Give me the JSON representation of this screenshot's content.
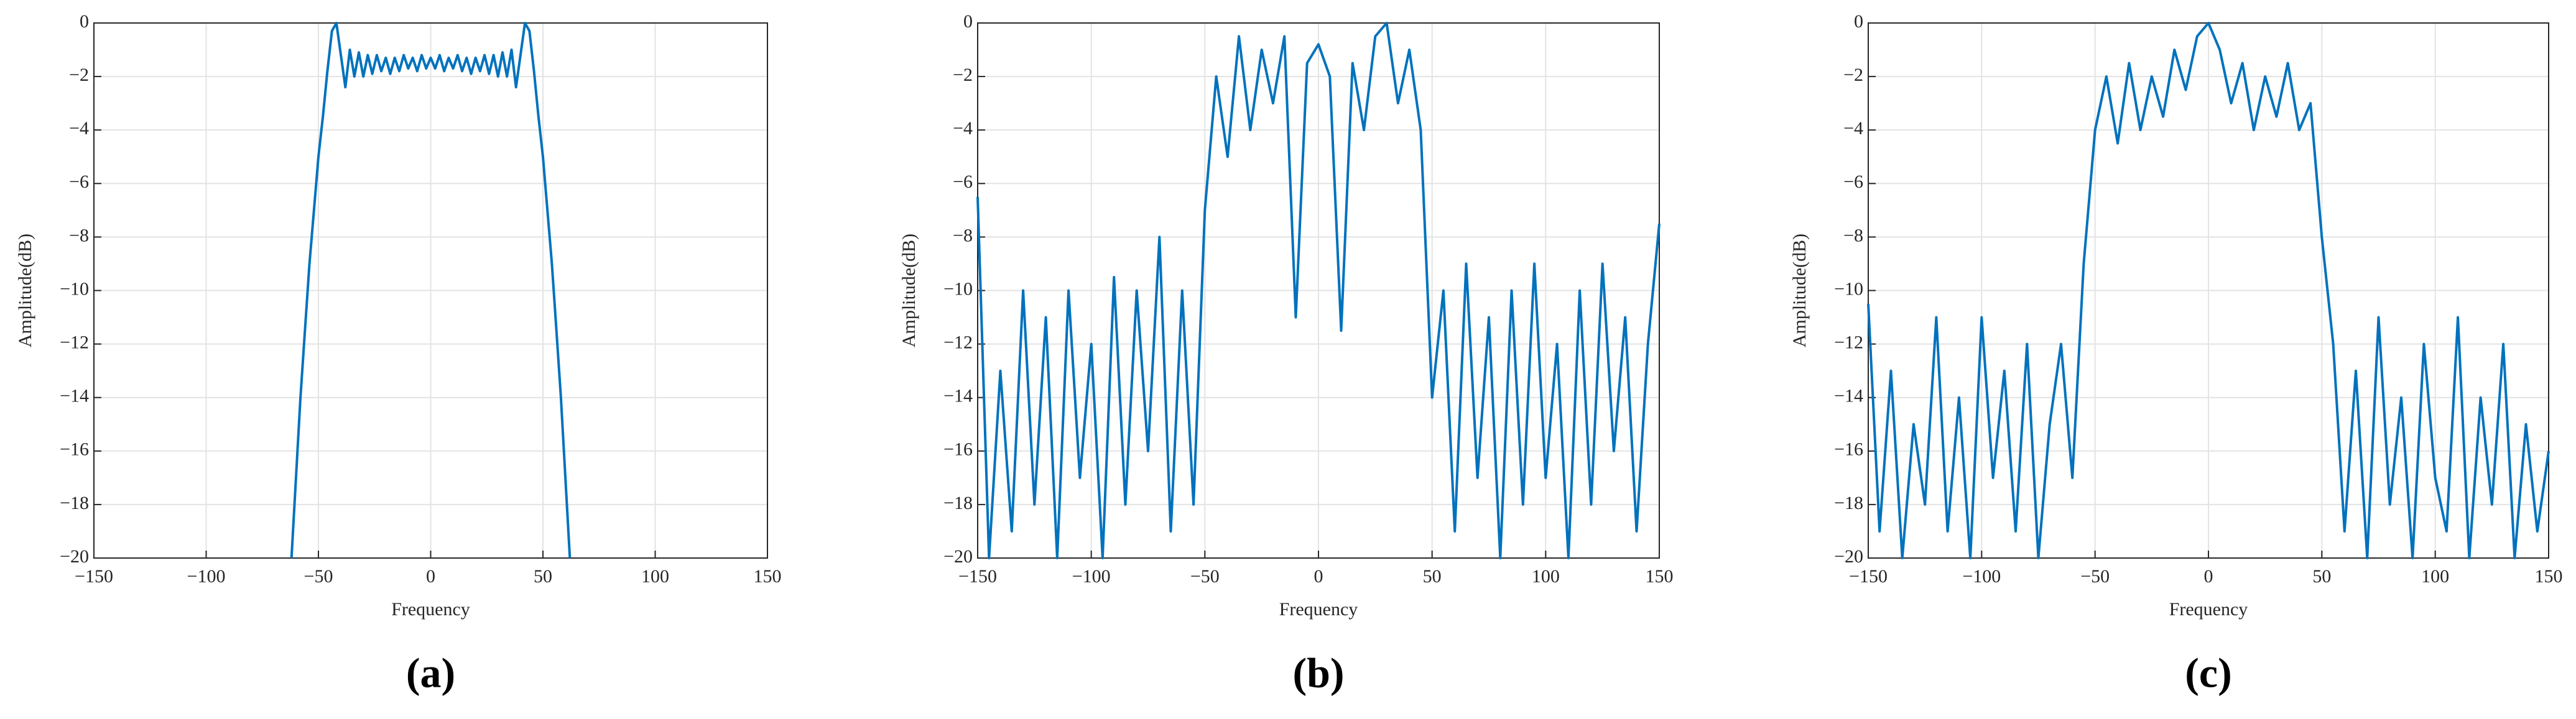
{
  "chart_data": [
    {
      "type": "line",
      "xlabel": "Frequency",
      "ylabel": "Amplitude(dB)",
      "caption": "(a)",
      "color": "#0072bd",
      "grid": true,
      "xlim": [
        -150,
        150
      ],
      "ylim": [
        -20,
        0
      ],
      "xticks": [
        {
          "value": -150,
          "label": "−150"
        },
        {
          "value": -100,
          "label": "−100"
        },
        {
          "value": -50,
          "label": "−50"
        },
        0,
        50,
        100,
        150
      ],
      "yticks": [
        {
          "value": -20,
          "label": "−20"
        },
        {
          "value": -18,
          "label": "−18"
        },
        {
          "value": -16,
          "label": "−16"
        },
        {
          "value": -14,
          "label": "−14"
        },
        {
          "value": -12,
          "label": "−12"
        },
        {
          "value": -10,
          "label": "−10"
        },
        {
          "value": -8,
          "label": "−8"
        },
        {
          "value": -6,
          "label": "−6"
        },
        {
          "value": -4,
          "label": "−4"
        },
        {
          "value": -2,
          "label": "−2"
        },
        0
      ],
      "x": [
        -62,
        -60,
        -58,
        -56,
        -54,
        -52,
        -50,
        -48,
        -46,
        -44,
        -42,
        -40,
        -38,
        -36,
        -34,
        -32,
        -30,
        -28,
        -26,
        -24,
        -22,
        -20,
        -18,
        -16,
        -14,
        -12,
        -10,
        -8,
        -6,
        -4,
        -2,
        0,
        2,
        4,
        6,
        8,
        10,
        12,
        14,
        16,
        18,
        20,
        22,
        24,
        26,
        28,
        30,
        32,
        34,
        36,
        38,
        40,
        42,
        44,
        46,
        48,
        50,
        52,
        54,
        56,
        58,
        60,
        62
      ],
      "values": [
        -20,
        -17,
        -14,
        -11.5,
        -9,
        -7,
        -5,
        -3.5,
        -1.8,
        -0.3,
        0,
        -1.2,
        -2.4,
        -1.0,
        -2.0,
        -1.1,
        -2.0,
        -1.2,
        -1.9,
        -1.2,
        -1.8,
        -1.3,
        -1.9,
        -1.3,
        -1.8,
        -1.2,
        -1.7,
        -1.3,
        -1.8,
        -1.2,
        -1.7,
        -1.3,
        -1.7,
        -1.2,
        -1.8,
        -1.3,
        -1.7,
        -1.2,
        -1.8,
        -1.3,
        -1.9,
        -1.3,
        -1.8,
        -1.2,
        -1.9,
        -1.2,
        -2.0,
        -1.1,
        -2.0,
        -1.0,
        -2.4,
        -1.2,
        0,
        -0.3,
        -1.8,
        -3.5,
        -5,
        -7,
        -9,
        -11.5,
        -14,
        -17,
        -20
      ]
    },
    {
      "type": "line",
      "xlabel": "Frequency",
      "ylabel": "Amplitude(dB)",
      "caption": "(b)",
      "color": "#0072bd",
      "grid": true,
      "xlim": [
        -150,
        150
      ],
      "ylim": [
        -20,
        0
      ],
      "xticks": [
        {
          "value": -150,
          "label": "−150"
        },
        {
          "value": -100,
          "label": "−100"
        },
        {
          "value": -50,
          "label": "−50"
        },
        0,
        50,
        100,
        150
      ],
      "yticks": [
        {
          "value": -20,
          "label": "−20"
        },
        {
          "value": -18,
          "label": "−18"
        },
        {
          "value": -16,
          "label": "−16"
        },
        {
          "value": -14,
          "label": "−14"
        },
        {
          "value": -12,
          "label": "−12"
        },
        {
          "value": -10,
          "label": "−10"
        },
        {
          "value": -8,
          "label": "−8"
        },
        {
          "value": -6,
          "label": "−6"
        },
        {
          "value": -4,
          "label": "−4"
        },
        {
          "value": -2,
          "label": "−2"
        },
        0
      ],
      "x": [
        -150,
        -145,
        -140,
        -135,
        -130,
        -125,
        -120,
        -115,
        -110,
        -105,
        -100,
        -95,
        -90,
        -85,
        -80,
        -75,
        -70,
        -65,
        -60,
        -55,
        -50,
        -45,
        -40,
        -35,
        -30,
        -25,
        -20,
        -15,
        -10,
        -5,
        0,
        5,
        10,
        15,
        20,
        25,
        30,
        35,
        40,
        45,
        50,
        55,
        60,
        65,
        70,
        75,
        80,
        85,
        90,
        95,
        100,
        105,
        110,
        115,
        120,
        125,
        130,
        135,
        140,
        145,
        150
      ],
      "values": [
        -6.5,
        -20,
        -13,
        -19,
        -10,
        -18,
        -11,
        -20,
        -10,
        -17,
        -12,
        -20,
        -9.5,
        -18,
        -10,
        -16,
        -8,
        -19,
        -10,
        -18,
        -7,
        -2,
        -5,
        -0.5,
        -4,
        -1,
        -3,
        -0.5,
        -11,
        -1.5,
        -0.8,
        -2,
        -11.5,
        -1.5,
        -4,
        -0.5,
        0,
        -3,
        -1,
        -4,
        -14,
        -10,
        -19,
        -9,
        -17,
        -11,
        -20,
        -10,
        -18,
        -9,
        -17,
        -12,
        -20,
        -10,
        -18,
        -9,
        -16,
        -11,
        -19,
        -12,
        -7.5
      ]
    },
    {
      "type": "line",
      "xlabel": "Frequency",
      "ylabel": "Amplitude(dB)",
      "caption": "(c)",
      "color": "#0072bd",
      "grid": true,
      "xlim": [
        -150,
        150
      ],
      "ylim": [
        -20,
        0
      ],
      "xticks": [
        {
          "value": -150,
          "label": "−150"
        },
        {
          "value": -100,
          "label": "−100"
        },
        {
          "value": -50,
          "label": "−50"
        },
        0,
        50,
        100,
        150
      ],
      "yticks": [
        {
          "value": -20,
          "label": "−20"
        },
        {
          "value": -18,
          "label": "−18"
        },
        {
          "value": -16,
          "label": "−16"
        },
        {
          "value": -14,
          "label": "−14"
        },
        {
          "value": -12,
          "label": "−12"
        },
        {
          "value": -10,
          "label": "−10"
        },
        {
          "value": -8,
          "label": "−8"
        },
        {
          "value": -6,
          "label": "−6"
        },
        {
          "value": -4,
          "label": "−4"
        },
        {
          "value": -2,
          "label": "−2"
        },
        0
      ],
      "x": [
        -150,
        -145,
        -140,
        -135,
        -130,
        -125,
        -120,
        -115,
        -110,
        -105,
        -100,
        -95,
        -90,
        -85,
        -80,
        -75,
        -70,
        -65,
        -60,
        -55,
        -50,
        -45,
        -40,
        -35,
        -30,
        -25,
        -20,
        -15,
        -10,
        -5,
        0,
        5,
        10,
        15,
        20,
        25,
        30,
        35,
        40,
        45,
        50,
        55,
        60,
        65,
        70,
        75,
        80,
        85,
        90,
        95,
        100,
        105,
        110,
        115,
        120,
        125,
        130,
        135,
        140,
        145,
        150
      ],
      "values": [
        -10.5,
        -19,
        -13,
        -20,
        -15,
        -18,
        -11,
        -19,
        -14,
        -20,
        -11,
        -17,
        -13,
        -19,
        -12,
        -20,
        -15,
        -12,
        -17,
        -9,
        -4,
        -2,
        -4.5,
        -1.5,
        -4,
        -2,
        -3.5,
        -1,
        -2.5,
        -0.5,
        0,
        -1,
        -3,
        -1.5,
        -4,
        -2,
        -3.5,
        -1.5,
        -4,
        -3,
        -8,
        -12,
        -19,
        -13,
        -20,
        -11,
        -18,
        -14,
        -20,
        -12,
        -17,
        -19,
        -11,
        -20,
        -14,
        -18,
        -12,
        -20,
        -15,
        -19,
        -16
      ]
    }
  ]
}
